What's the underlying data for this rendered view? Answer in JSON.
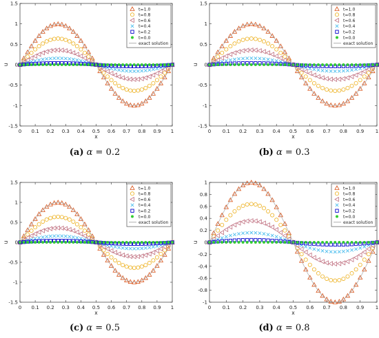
{
  "chart_data": [
    {
      "type": "line",
      "caption": {
        "letter": "(a)",
        "greek": "α",
        "rest": " = 0.2"
      },
      "xlabel": "x",
      "ylabel": "u",
      "xlim": [
        0,
        1
      ],
      "ylim": [
        -1.5,
        1.5
      ],
      "xticks": [
        "0",
        "0.1",
        "0.2",
        "0.3",
        "0.4",
        "0.5",
        "0.6",
        "0.7",
        "0.8",
        "0.9",
        "1"
      ],
      "yticks": [
        "1.5",
        "1",
        "0.5",
        "0",
        "-0.5",
        "-1",
        "-1.5"
      ],
      "legend_position": "top-right",
      "series": [
        {
          "name": "t=1.0",
          "marker": "triangle",
          "color": "#d95319",
          "amplitude": 1.0
        },
        {
          "name": "t=0.8",
          "marker": "circle",
          "color": "#edb120",
          "amplitude": 0.64
        },
        {
          "name": "t=0.6",
          "marker": "triangle-left",
          "color": "#c07080",
          "amplitude": 0.36
        },
        {
          "name": "t=0.4",
          "marker": "x",
          "color": "#4dbeee",
          "amplitude": 0.16
        },
        {
          "name": "t=0.2",
          "marker": "square",
          "color": "#0000cc",
          "amplitude": 0.04
        },
        {
          "name": "t=0.0",
          "marker": "dot",
          "color": "#33cc33",
          "amplitude": 0.0
        },
        {
          "name": "exact solution",
          "marker": "line",
          "color": "#999999",
          "amplitude": 1.0
        }
      ]
    },
    {
      "type": "line",
      "caption": {
        "letter": "(b)",
        "greek": "α",
        "rest": " = 0.3"
      },
      "xlabel": "x",
      "ylabel": "u",
      "xlim": [
        0,
        1
      ],
      "ylim": [
        -1.5,
        1.5
      ],
      "xticks": [
        "0",
        "0.1",
        "0.2",
        "0.3",
        "0.4",
        "0.5",
        "0.6",
        "0.7",
        "0.8",
        "0.9",
        "1"
      ],
      "yticks": [
        "1.5",
        "1",
        "0.5",
        "0",
        "-0.5",
        "-1",
        "-1.5"
      ],
      "legend_position": "top-right",
      "series": [
        {
          "name": "t=1.0",
          "marker": "triangle",
          "color": "#d95319",
          "amplitude": 1.0
        },
        {
          "name": "t=0.8",
          "marker": "circle",
          "color": "#edb120",
          "amplitude": 0.64
        },
        {
          "name": "t=0.6",
          "marker": "triangle-left",
          "color": "#c07080",
          "amplitude": 0.36
        },
        {
          "name": "t=0.4",
          "marker": "x",
          "color": "#4dbeee",
          "amplitude": 0.16
        },
        {
          "name": "t=0.2",
          "marker": "square",
          "color": "#0000cc",
          "amplitude": 0.04
        },
        {
          "name": "t=0.0",
          "marker": "dot",
          "color": "#33cc33",
          "amplitude": 0.0
        },
        {
          "name": "exact solution",
          "marker": "line",
          "color": "#999999",
          "amplitude": 1.0
        }
      ]
    },
    {
      "type": "line",
      "caption": {
        "letter": "(c)",
        "greek": "α",
        "rest": " = 0.5"
      },
      "xlabel": "x",
      "ylabel": "u",
      "xlim": [
        0,
        1
      ],
      "ylim": [
        -1.5,
        1.5
      ],
      "xticks": [
        "0",
        "0.1",
        "0.2",
        "0.3",
        "0.4",
        "0.5",
        "0.6",
        "0.7",
        "0.8",
        "0.9",
        "1"
      ],
      "yticks": [
        "1.5",
        "1",
        "0.5",
        "0",
        "-0.5",
        "-1",
        "-1.5"
      ],
      "legend_position": "top-right",
      "series": [
        {
          "name": "t=1.0",
          "marker": "triangle",
          "color": "#d95319",
          "amplitude": 1.0
        },
        {
          "name": "t=0.8",
          "marker": "circle",
          "color": "#edb120",
          "amplitude": 0.64
        },
        {
          "name": "t=0.6",
          "marker": "triangle-left",
          "color": "#c07080",
          "amplitude": 0.36
        },
        {
          "name": "t=0.4",
          "marker": "x",
          "color": "#4dbeee",
          "amplitude": 0.16
        },
        {
          "name": "t=0.2",
          "marker": "square",
          "color": "#0000cc",
          "amplitude": 0.04
        },
        {
          "name": "t=0.0",
          "marker": "dot",
          "color": "#33cc33",
          "amplitude": 0.0
        },
        {
          "name": "exact solution",
          "marker": "line",
          "color": "#999999",
          "amplitude": 1.0
        }
      ]
    },
    {
      "type": "line",
      "caption": {
        "letter": "(d)",
        "greek": "α",
        "rest": " = 0.8"
      },
      "xlabel": "x",
      "ylabel": "u",
      "xlim": [
        0,
        1
      ],
      "ylim": [
        -1,
        1
      ],
      "xticks": [
        "0",
        "0.1",
        "0.2",
        "0.3",
        "0.4",
        "0.5",
        "0.6",
        "0.7",
        "0.8",
        "0.9",
        "1"
      ],
      "yticks": [
        "1",
        "0.8",
        "0.6",
        "0.4",
        "0.2",
        "0",
        "-0.2",
        "-0.4",
        "-0.6",
        "-0.8",
        "-1"
      ],
      "legend_position": "top-right",
      "series": [
        {
          "name": "t=1.0",
          "marker": "triangle",
          "color": "#d95319",
          "amplitude": 1.0
        },
        {
          "name": "t=0.8",
          "marker": "circle",
          "color": "#edb120",
          "amplitude": 0.64
        },
        {
          "name": "t=0.6",
          "marker": "triangle-left",
          "color": "#c07080",
          "amplitude": 0.36
        },
        {
          "name": "t=0.4",
          "marker": "x",
          "color": "#4dbeee",
          "amplitude": 0.16
        },
        {
          "name": "t=0.2",
          "marker": "square",
          "color": "#0000cc",
          "amplitude": 0.04
        },
        {
          "name": "t=0.0",
          "marker": "dot",
          "color": "#33cc33",
          "amplitude": 0.0
        },
        {
          "name": "exact solution",
          "marker": "line",
          "color": "#999999",
          "amplitude": 1.0
        }
      ]
    }
  ]
}
